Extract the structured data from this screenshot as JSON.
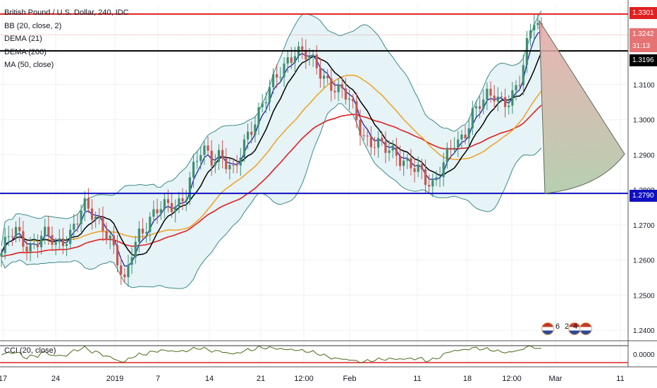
{
  "chart_title": "British Pound / U.S. Dollar, 240, IDC",
  "indicators": {
    "bb": "BB (20, close, 2)",
    "dema21": "DEMA (21)",
    "dema200": "DEMA (200)",
    "ma50": "MA (50, close)"
  },
  "cci_label": "CCI (20, close)",
  "event_badge": {
    "left": "6",
    "mid": "2",
    "right": "4"
  },
  "price_labels": {
    "resistance": "1.3301",
    "last_price": "1.3242",
    "countdown": "31:13",
    "current_level": "1.3196",
    "support": "1.2790"
  },
  "cci_axis_label": "0.0000",
  "colors": {
    "up_candle": "#3c8f72",
    "down_candle": "#c85650",
    "bb_band": "#3c8a86",
    "bb_fill": "#e6f3f7",
    "dema21": "#2222aa",
    "dema200": "#e02020",
    "ma50": "#f0a020",
    "black_ma": "#000000",
    "resistance_line": "#e02020",
    "current_line": "#000000",
    "support_line": "#1010c0",
    "cci_line": "#4a6a1a"
  },
  "chart_data": {
    "type": "line",
    "title": "British Pound / U.S. Dollar, 240, IDC",
    "y_ticks": [
      1.24,
      1.25,
      1.26,
      1.27,
      1.279,
      1.28,
      1.29,
      1.3,
      1.31,
      1.3196,
      1.3242,
      1.3301
    ],
    "y_axis_labels": [
      "1.2400",
      "1.2500",
      "1.2600",
      "1.2700",
      "1.2800",
      "1.2900",
      "1.3000",
      "1.3100"
    ],
    "ylim": [
      1.237,
      1.3325
    ],
    "x_ticks": [
      "17",
      "24",
      "2019",
      "7",
      "14",
      "21",
      "12:00",
      "Feb",
      "11",
      "18",
      "12:00",
      "Mar",
      "11"
    ],
    "horizontal_levels": [
      {
        "label": "resistance",
        "value": 1.3301
      },
      {
        "label": "current",
        "value": 1.3196
      },
      {
        "label": "support",
        "value": 1.279
      }
    ],
    "close_series": [
      1.262,
      1.266,
      1.268,
      1.266,
      1.264,
      1.265,
      1.267,
      1.266,
      1.264,
      1.266,
      1.268,
      1.271,
      1.275,
      1.273,
      1.272,
      1.27,
      1.266,
      1.259,
      1.252,
      1.262,
      1.268,
      1.27,
      1.272,
      1.274,
      1.275,
      1.276,
      1.277,
      1.279,
      1.285,
      1.29,
      1.291,
      1.289,
      1.291,
      1.287,
      1.284,
      1.29,
      1.296,
      1.3,
      1.304,
      1.307,
      1.311,
      1.314,
      1.318,
      1.32,
      1.319,
      1.317,
      1.315,
      1.313,
      1.311,
      1.309,
      1.307,
      1.305,
      1.3,
      1.296,
      1.294,
      1.293,
      1.291,
      1.291,
      1.29,
      1.289,
      1.287,
      1.285,
      1.282,
      1.281,
      1.286,
      1.29,
      1.293,
      1.292,
      1.296,
      1.303,
      1.306,
      1.307,
      1.306,
      1.304,
      1.305,
      1.309,
      1.313,
      1.322,
      1.328,
      1.324
    ],
    "projection_apex": 1.3282,
    "projection_base": 1.279
  }
}
